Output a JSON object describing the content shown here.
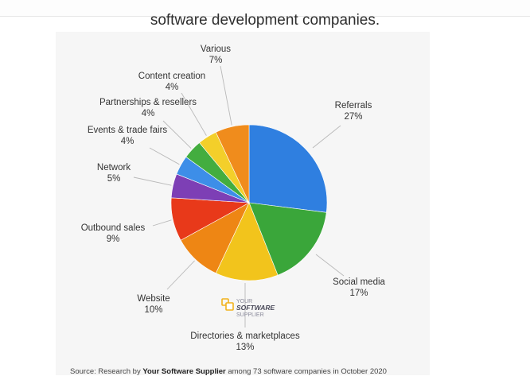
{
  "page": {
    "title": "software development companies."
  },
  "chart_data": {
    "type": "pie",
    "slices": [
      {
        "label": "Referrals",
        "percent_label": "27%",
        "value": 27,
        "color": "#2f7fe0"
      },
      {
        "label": "Social media",
        "percent_label": "17%",
        "value": 17,
        "color": "#3aa63a"
      },
      {
        "label": "Directories & marketplaces",
        "percent_label": "13%",
        "value": 13,
        "color": "#f2c41c"
      },
      {
        "label": "Website",
        "percent_label": "10%",
        "value": 10,
        "color": "#ee8614"
      },
      {
        "label": "Outbound sales",
        "percent_label": "9%",
        "value": 9,
        "color": "#e8391a"
      },
      {
        "label": "Network",
        "percent_label": "5%",
        "value": 5,
        "color": "#7d3fb5"
      },
      {
        "label": "Events & trade fairs",
        "percent_label": "4%",
        "value": 4,
        "color": "#3d8ee8"
      },
      {
        "label": "Partnerships & resellers",
        "percent_label": "4%",
        "value": 4,
        "color": "#43ad3f"
      },
      {
        "label": "Content creation",
        "percent_label": "4%",
        "value": 4,
        "color": "#f3cf2a"
      },
      {
        "label": "Various",
        "percent_label": "7%",
        "value": 7,
        "color": "#f08c1c"
      }
    ],
    "start": "12 o'clock",
    "direction": "clockwise"
  },
  "logo": {
    "line1": "YOUR",
    "line2": "SOFTWARE",
    "line3": "SUPPLIER",
    "color": "#f2b21c"
  },
  "source": {
    "prefix": "Source: Research by ",
    "brand": "Your Software Supplier",
    "suffix": " among 73 software companies in October 2020"
  }
}
